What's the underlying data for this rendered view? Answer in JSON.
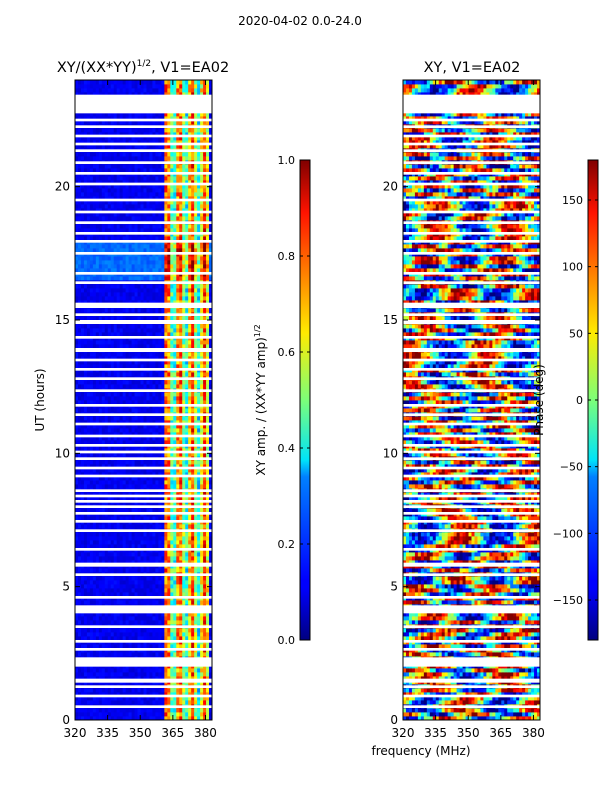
{
  "suptitle": "2020-04-02 0.0-24.0",
  "chart_data": [
    {
      "type": "heatmap",
      "title": "XY/(XX*YY)^1/2, V1=EA02",
      "title_main": "XY/(XX*YY)",
      "title_exp": "1/2",
      "title_tail": ", V1=EA02",
      "xlabel": "",
      "ylabel": "UT (hours)",
      "xlim": [
        320,
        383
      ],
      "ylim": [
        0,
        24
      ],
      "xticks": [
        320,
        335,
        350,
        365,
        380
      ],
      "yticks": [
        0,
        5,
        10,
        15,
        20
      ],
      "colorbar": {
        "label": "XY amp. / (XX*YY amp)^1/2",
        "label_main": "XY amp. / (XX*YY amp)",
        "label_exp": "1/2",
        "range": [
          0.0,
          1.0
        ],
        "ticks": [
          "0.0",
          "0.2",
          "0.4",
          "0.6",
          "0.8",
          "1.0"
        ],
        "tick_values": [
          0.0,
          0.2,
          0.4,
          0.6,
          0.8,
          1.0
        ],
        "colormap": "jet"
      }
    },
    {
      "type": "heatmap",
      "title": "XY, V1=EA02",
      "xlabel": "frequency (MHz)",
      "ylabel": "",
      "xlim": [
        320,
        383
      ],
      "ylim": [
        0,
        24
      ],
      "xticks": [
        320,
        335,
        350,
        365,
        380
      ],
      "yticks": [
        0,
        5,
        10,
        15,
        20
      ],
      "colorbar": {
        "label": "Phase (deg)",
        "range": [
          -180,
          180
        ],
        "ticks": [
          "−150",
          "−100",
          "−50",
          "0",
          "50",
          "100",
          "150"
        ],
        "tick_values": [
          -150,
          -100,
          -50,
          0,
          50,
          100,
          150
        ],
        "colormap": "jet"
      }
    }
  ],
  "flagged_time_ranges_hours": [
    [
      0.45,
      0.55
    ],
    [
      0.85,
      0.95
    ],
    [
      1.2,
      1.3
    ],
    [
      1.4,
      1.55
    ],
    [
      2.0,
      2.35
    ],
    [
      2.6,
      2.7
    ],
    [
      2.9,
      3.0
    ],
    [
      3.45,
      3.55
    ],
    [
      4.0,
      4.3
    ],
    [
      4.55,
      4.65
    ],
    [
      5.4,
      5.5
    ],
    [
      5.75,
      5.9
    ],
    [
      6.35,
      6.45
    ],
    [
      7.05,
      7.15
    ],
    [
      7.4,
      7.5
    ],
    [
      7.7,
      7.8
    ],
    [
      7.95,
      8.05
    ],
    [
      8.15,
      8.25
    ],
    [
      8.35,
      8.45
    ],
    [
      8.55,
      8.65
    ],
    [
      9.1,
      9.2
    ],
    [
      9.4,
      9.5
    ],
    [
      9.75,
      9.85
    ],
    [
      10.0,
      10.1
    ],
    [
      10.25,
      10.35
    ],
    [
      10.6,
      10.7
    ],
    [
      11.05,
      11.15
    ],
    [
      11.4,
      11.5
    ],
    [
      11.75,
      11.85
    ],
    [
      12.3,
      12.4
    ],
    [
      12.75,
      12.85
    ],
    [
      13.1,
      13.2
    ],
    [
      13.45,
      13.55
    ],
    [
      13.8,
      13.95
    ],
    [
      14.3,
      14.4
    ],
    [
      14.85,
      15.0
    ],
    [
      15.15,
      15.25
    ],
    [
      15.45,
      15.65
    ],
    [
      16.35,
      16.45
    ],
    [
      16.7,
      16.8
    ],
    [
      17.45,
      17.55
    ],
    [
      17.9,
      18.0
    ],
    [
      18.2,
      18.3
    ],
    [
      18.6,
      18.7
    ],
    [
      19.0,
      19.1
    ],
    [
      19.45,
      19.55
    ],
    [
      20.05,
      20.15
    ],
    [
      20.45,
      20.55
    ],
    [
      20.85,
      20.95
    ],
    [
      21.3,
      21.4
    ],
    [
      21.55,
      21.65
    ],
    [
      21.85,
      21.95
    ],
    [
      22.2,
      22.3
    ],
    [
      22.45,
      22.55
    ],
    [
      22.75,
      23.45
    ]
  ]
}
